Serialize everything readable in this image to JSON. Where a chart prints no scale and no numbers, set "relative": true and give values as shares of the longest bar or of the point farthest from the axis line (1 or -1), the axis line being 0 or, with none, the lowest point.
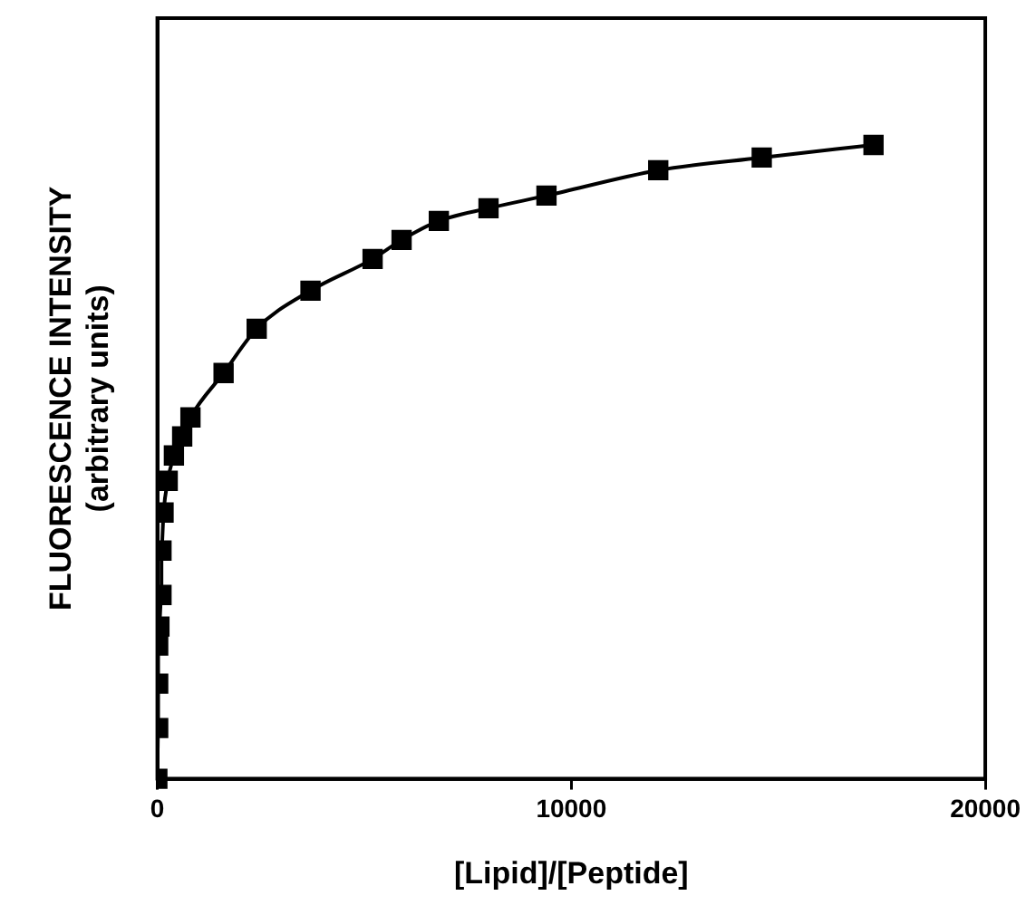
{
  "chart_data": {
    "type": "line",
    "relative": true,
    "xlabel": "[Lipid]/[Peptide]",
    "ylabel": "FLUORESCENCE INTENSITY\n(arbitrary units)",
    "x": [
      0,
      20,
      20,
      20,
      50,
      100,
      100,
      150,
      250,
      400,
      600,
      800,
      1600,
      2400,
      3700,
      5200,
      5900,
      6800,
      8000,
      9400,
      12100,
      14600,
      17300
    ],
    "series": [
      {
        "color": "#000000",
        "values": [
          0,
          0.08,
          0.15,
          0.21,
          0.24,
          0.29,
          0.36,
          0.42,
          0.47,
          0.51,
          0.54,
          0.57,
          0.64,
          0.71,
          0.77,
          0.82,
          0.85,
          0.88,
          0.9,
          0.92,
          0.96,
          0.98,
          1
        ]
      }
    ],
    "xlim": [
      0,
      20000
    ],
    "xticks": [
      0,
      10000,
      20000
    ],
    "grid": false,
    "legend": false,
    "marker": "square",
    "line_style": "solid"
  }
}
